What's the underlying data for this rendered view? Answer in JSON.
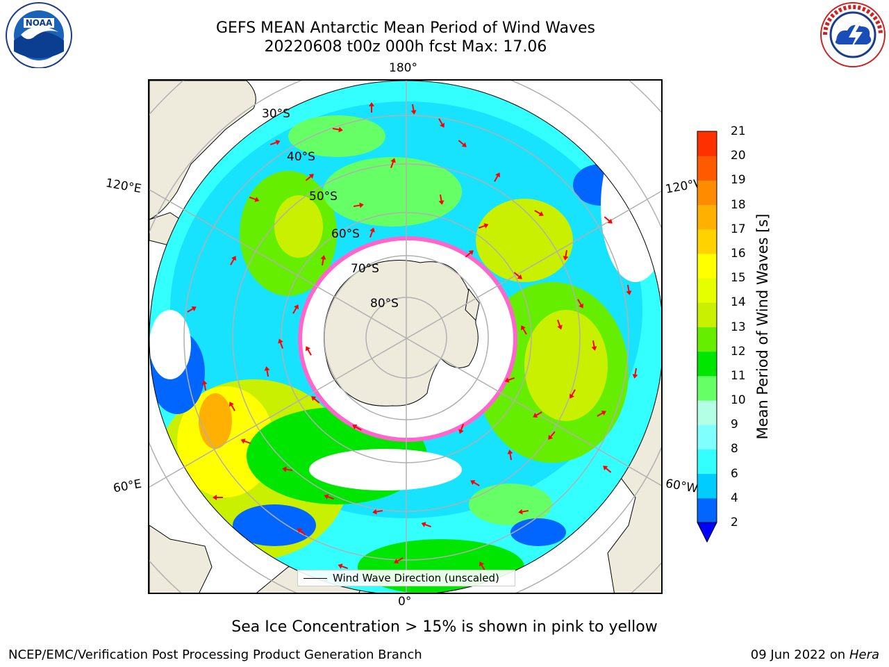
{
  "title": {
    "line1": "GEFS MEAN Antarctic Mean Period of Wind Waves",
    "line2": "20220608 t00z 000h fcst   Max: 17.06"
  },
  "logos": {
    "left": "noaa-logo",
    "right": "national-weather-service-logo"
  },
  "map": {
    "projection": "south-polar-stereographic",
    "longitude_labels": {
      "top": "180°",
      "bottom": "0°",
      "left_upper": "120°E",
      "left_lower": "60°E",
      "right_upper": "120°W",
      "right_lower": "60°W"
    },
    "latitude_labels": [
      "30°S",
      "40°S",
      "50°S",
      "60°S",
      "70°S",
      "80°S"
    ],
    "legend_entry": "Wind Wave Direction (unscaled)",
    "arrow_color": "#ff0000",
    "land_color": "#efebdc",
    "grid_color": "#b0b0b0"
  },
  "colorbar": {
    "label": "Mean Period of Wind Waves [s]",
    "ticks": [
      "2",
      "4",
      "6",
      "8",
      "9",
      "10",
      "11",
      "12",
      "13",
      "14",
      "15",
      "16",
      "17",
      "18",
      "19",
      "20",
      "21"
    ],
    "colors": [
      "#0066ff",
      "#00ccff",
      "#33ffff",
      "#80ffff",
      "#b3ffe6",
      "#66ff66",
      "#00e600",
      "#66ee00",
      "#c8f000",
      "#e6ff00",
      "#ffff00",
      "#ffd200",
      "#ffb000",
      "#ff8c00",
      "#ff5a00",
      "#ff3000",
      "#ff0000"
    ],
    "extend_color": "#0000ff"
  },
  "sea_ice_note": "Sea Ice Concentration > 15% is shown in pink to yellow",
  "footer": {
    "left": "NCEP/EMC/Verification Post Processing Product Generation Branch",
    "date": "09 Jun 2022 on",
    "machine": "Hera"
  }
}
